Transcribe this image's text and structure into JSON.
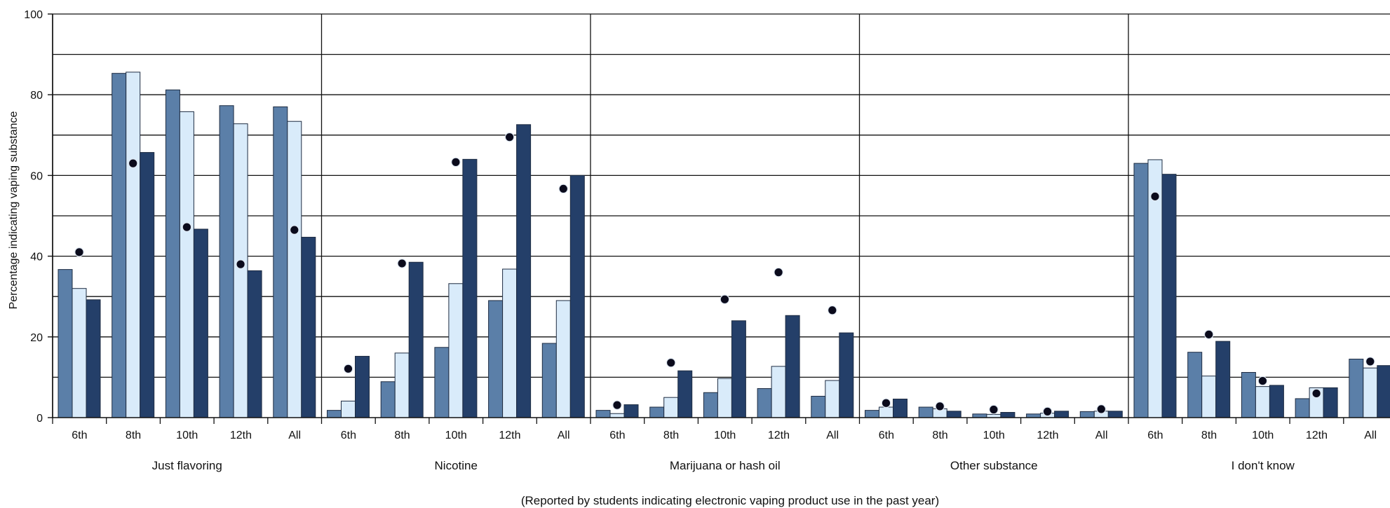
{
  "chart_data": {
    "type": "bar",
    "ylabel": "Percentage indicating vaping substance",
    "xlabel": "(Reported by students indicating electronic vaping product use in the past year)",
    "ylim": [
      0,
      100
    ],
    "y_ticks": [
      "0",
      "20",
      "40",
      "60",
      "80",
      "100"
    ],
    "gridlines": [
      10,
      20,
      30,
      40,
      50,
      60,
      70,
      80,
      90,
      100
    ],
    "grid": true,
    "groups": [
      "Just flavoring",
      "Nicotine",
      "Marijuana or hash oil",
      "Other substance",
      "I don't know"
    ],
    "subcategories": [
      "6th",
      "8th",
      "10th",
      "12th",
      "All"
    ],
    "series": [
      {
        "values": [
          [
            36.7,
            85.3,
            81.2,
            77.3,
            77.0
          ],
          [
            1.8,
            8.9,
            17.4,
            29.0,
            18.4
          ],
          [
            1.8,
            2.6,
            6.2,
            7.2,
            5.3
          ],
          [
            1.8,
            2.6,
            0.9,
            0.9,
            1.5
          ],
          [
            63.0,
            16.2,
            11.2,
            4.7,
            14.5
          ]
        ]
      },
      {
        "values": [
          [
            32.0,
            85.6,
            75.8,
            72.8,
            73.4
          ],
          [
            4.1,
            16.0,
            33.2,
            36.8,
            29.0
          ],
          [
            1.0,
            5.0,
            9.7,
            12.7,
            9.2
          ],
          [
            2.6,
            2.2,
            0.8,
            1.1,
            1.6
          ],
          [
            63.9,
            10.3,
            7.7,
            7.4,
            12.3
          ]
        ]
      },
      {
        "values": [
          [
            29.2,
            65.7,
            46.7,
            36.4,
            44.7
          ],
          [
            15.2,
            38.5,
            64.0,
            72.6,
            60.0
          ],
          [
            3.2,
            11.6,
            24.0,
            25.3,
            21.0
          ],
          [
            4.6,
            1.6,
            1.3,
            1.6,
            1.6
          ],
          [
            60.3,
            18.9,
            8.0,
            7.4,
            12.9
          ]
        ]
      }
    ],
    "points": [
      [
        41.0,
        63.0,
        47.2,
        38.0,
        46.5
      ],
      [
        12.1,
        38.2,
        63.3,
        69.5,
        56.7
      ],
      [
        3.1,
        13.6,
        29.3,
        36.0,
        26.6
      ],
      [
        3.6,
        2.8,
        2.0,
        1.5,
        2.1
      ],
      [
        54.8,
        20.6,
        9.1,
        6.0,
        13.9
      ]
    ],
    "colors": {
      "series": [
        "#5b7fa8",
        "#d9ebfa",
        "#243f69"
      ],
      "points": "#0b0b1c",
      "bar_stroke": "#1e2c42",
      "axis": "#111111"
    }
  }
}
